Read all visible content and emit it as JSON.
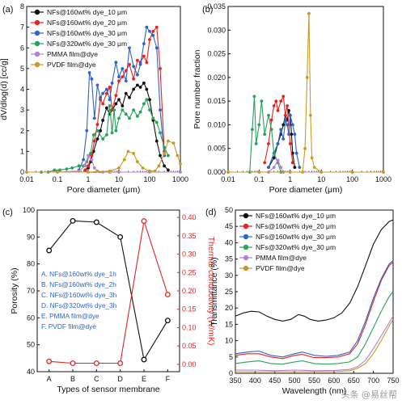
{
  "watermark": "头条 @易丝帮",
  "chart_data": [
    {
      "panel_label": "(a)",
      "type": "line",
      "xlabel": "Pore diameter (μm)",
      "ylabel": "dV/dlog(d) [cc/g]",
      "xscale": "log",
      "xlim": [
        0.01,
        1000
      ],
      "ylim": [
        0,
        8
      ],
      "xticks": [
        "0.01",
        "0.1",
        "1",
        "10",
        "100",
        "1000"
      ],
      "yticks": [
        "0",
        "1",
        "2",
        "3",
        "4",
        "5",
        "6",
        "7",
        "8"
      ],
      "legend_position": "top-left",
      "series": [
        {
          "name": "NFs@160wt% dye_10 μm",
          "color": "#111111",
          "x": [
            0.8,
            1.0,
            1.2,
            1.5,
            2,
            2.5,
            3,
            4,
            5,
            6,
            8,
            10,
            13,
            17,
            22,
            30,
            40,
            50,
            65,
            80,
            100,
            130,
            170,
            220,
            300,
            400
          ],
          "y": [
            0.1,
            0.2,
            0.5,
            1.0,
            1.6,
            2.0,
            2.5,
            3.1,
            2.8,
            3.0,
            3.3,
            3.5,
            3.2,
            3.8,
            3.6,
            4.0,
            4.2,
            4.1,
            4.3,
            4.0,
            3.5,
            2.5,
            1.5,
            0.8,
            0.3,
            0.1
          ]
        },
        {
          "name": "NFs@160wt% dye_20 μm",
          "color": "#e8231f",
          "x": [
            0.8,
            1.0,
            1.3,
            1.6,
            2,
            2.5,
            3,
            4,
            5,
            6,
            8,
            10,
            13,
            17,
            22,
            30,
            40,
            50,
            65,
            80,
            100,
            130,
            170,
            220,
            300
          ],
          "y": [
            0.1,
            0.3,
            0.8,
            1.5,
            2.3,
            3.5,
            3.3,
            3.8,
            4.1,
            3.0,
            3.7,
            4.4,
            4.6,
            4.9,
            5.2,
            4.5,
            5.4,
            5.3,
            5.6,
            5.3,
            6.4,
            6.8,
            7.0,
            5.0,
            1.0
          ]
        },
        {
          "name": "NFs@160wt% dye_30 μm",
          "color": "#2f63c7",
          "x": [
            0.5,
            0.7,
            0.9,
            1.1,
            1.3,
            1.6,
            2,
            2.5,
            3,
            4,
            5,
            6,
            8,
            10,
            13,
            17,
            22,
            30,
            40,
            50,
            65,
            80,
            100,
            130,
            170,
            220,
            300
          ],
          "y": [
            0.1,
            0.6,
            2.0,
            4.8,
            4.5,
            2.6,
            4.2,
            3.6,
            3.8,
            4.0,
            3.5,
            4.3,
            5.3,
            4.6,
            5.0,
            4.4,
            6.0,
            5.1,
            4.7,
            5.2,
            6.2,
            7.0,
            6.8,
            6.6,
            6.0,
            3.0,
            0.8
          ]
        },
        {
          "name": "NFs@320wt% dye_30 μm",
          "color": "#27a25b",
          "x": [
            0.03,
            0.05,
            0.08,
            0.12,
            0.2,
            0.3,
            0.5,
            0.7,
            0.9,
            1.2,
            1.5,
            2,
            3,
            4,
            5,
            6,
            7,
            8,
            10,
            13,
            17,
            22,
            30,
            40,
            50,
            65,
            80,
            100,
            130,
            170,
            220,
            300,
            400
          ],
          "y": [
            0.0,
            0.0,
            0.1,
            0.1,
            0.15,
            0.2,
            0.3,
            0.3,
            0.5,
            0.9,
            1.8,
            2.0,
            1.6,
            1.8,
            3.2,
            1.9,
            3.0,
            2.0,
            2.6,
            3.0,
            2.8,
            2.6,
            3.0,
            2.7,
            2.9,
            3.3,
            3.5,
            3.0,
            2.6,
            2.4,
            1.9,
            1.2,
            0.8
          ]
        },
        {
          "name": "PMMA film@dye",
          "color": "#b67fd1",
          "x": [
            0.01,
            0.1,
            0.5,
            0.8,
            1.0,
            1.3,
            1.6,
            2,
            3,
            5,
            10,
            100,
            1000
          ],
          "y": [
            0.0,
            0.0,
            0.05,
            0.3,
            0.8,
            0.6,
            0.2,
            0.05,
            0.0,
            0.0,
            0.0,
            0.0,
            0.0
          ]
        },
        {
          "name": "PVDF film@dye",
          "color": "#c99a27",
          "x": [
            0.01,
            0.1,
            1,
            5,
            10,
            15,
            20,
            30,
            40,
            60,
            100,
            150,
            200,
            300,
            400,
            600,
            800,
            1000
          ],
          "y": [
            0.0,
            0.0,
            0.0,
            0.05,
            0.2,
            0.6,
            1.0,
            0.9,
            0.5,
            0.2,
            0.05,
            0.05,
            0.3,
            0.9,
            1.5,
            1.4,
            0.8,
            0.4
          ]
        }
      ]
    },
    {
      "panel_label": "(b)",
      "type": "line",
      "xlabel": "Pore diameter (μm)",
      "ylabel": "Pore number fraction",
      "xscale": "log",
      "xlim": [
        0.01,
        1000
      ],
      "ylim": [
        0,
        0.035
      ],
      "xticks": [
        "0.01",
        "0.1",
        "1",
        "10",
        "100",
        "1000"
      ],
      "yticks": [
        "0.000",
        "0.005",
        "0.010",
        "0.015",
        "0.020",
        "0.025",
        "0.030",
        "0.035"
      ],
      "series": [
        {
          "name": "NFs@160wt% dye_10 μm",
          "color": "#111111",
          "x": [
            0.2,
            0.3,
            0.4,
            0.5,
            0.6,
            0.7,
            0.8,
            0.9,
            1.0,
            1.1,
            1.2,
            1.4
          ],
          "y": [
            0.001,
            0.003,
            0.006,
            0.008,
            0.01,
            0.012,
            0.011,
            0.013,
            0.012,
            0.008,
            0.004,
            0.001
          ]
        },
        {
          "name": "NFs@160wt% dye_20 μm",
          "color": "#e8231f",
          "x": [
            0.15,
            0.2,
            0.25,
            0.3,
            0.35,
            0.4,
            0.5,
            0.6,
            0.7,
            0.8,
            0.9,
            1.0,
            1.2
          ],
          "y": [
            0.002,
            0.006,
            0.011,
            0.014,
            0.015,
            0.013,
            0.015,
            0.016,
            0.012,
            0.014,
            0.01,
            0.006,
            0.002
          ]
        },
        {
          "name": "NFs@160wt% dye_30 μm",
          "color": "#2f63c7",
          "x": [
            0.2,
            0.3,
            0.4,
            0.5,
            0.6,
            0.7,
            0.8,
            0.9,
            1.0,
            1.2,
            1.4,
            1.6,
            2.0
          ],
          "y": [
            0.001,
            0.004,
            0.006,
            0.009,
            0.007,
            0.011,
            0.01,
            0.008,
            0.012,
            0.01,
            0.008,
            0.004,
            0.001
          ]
        },
        {
          "name": "NFs@320wt% dye_30 μm",
          "color": "#27a25b",
          "x": [
            0.05,
            0.06,
            0.07,
            0.08,
            0.1,
            0.12,
            0.15,
            0.2,
            0.25,
            0.3,
            0.4,
            0.5
          ],
          "y": [
            0.0,
            0.009,
            0.016,
            0.006,
            0.01,
            0.015,
            0.008,
            0.012,
            0.009,
            0.004,
            0.002,
            0.0
          ]
        },
        {
          "name": "PMMA film@dye",
          "color": "#b67fd1",
          "x": [
            0.01,
            0.1,
            0.2,
            0.3,
            0.4,
            0.5,
            0.6,
            1,
            10,
            100,
            1000
          ],
          "y": [
            0.0,
            0.0,
            0.0,
            0.001,
            0.0025,
            0.001,
            0.0,
            0.0,
            0.0,
            0.0,
            0.0
          ]
        },
        {
          "name": "PVDF film@dye",
          "color": "#c99a27",
          "x": [
            0.01,
            0.1,
            1,
            2.5,
            3,
            3.5,
            4,
            4.5,
            5,
            6,
            10,
            100,
            1000
          ],
          "y": [
            0.0,
            0.0,
            0.0,
            0.0,
            0.005,
            0.02,
            0.0335,
            0.012,
            0.003,
            0.001,
            0.0,
            0.0,
            0.0
          ]
        }
      ]
    },
    {
      "panel_label": "(c)",
      "type": "line",
      "xlabel": "Types of sensor membrane",
      "ylabel": "Porosity (%)",
      "ylabel_right": "Thermal conductivity (W/mK)",
      "categories": [
        "A",
        "B",
        "C",
        "D",
        "E",
        "F"
      ],
      "ylim": [
        40,
        100
      ],
      "ylim_right": [
        -0.02,
        0.42
      ],
      "yticks": [
        "40",
        "50",
        "60",
        "70",
        "80",
        "90",
        "100"
      ],
      "yticks_right": [
        "0.00",
        "0.05",
        "0.10",
        "0.15",
        "0.20",
        "0.25",
        "0.30",
        "0.35",
        "0.40"
      ],
      "annotations": [
        "A.  NFs@160wt% dye_1h",
        "B.  NFs@160wt% dye_2h",
        "C.  NFs@160wt% dye_3h",
        "D.  NFs@320wt% dye_3h",
        "E.  PMMA film@dye",
        "F.  PVDF film@dye"
      ],
      "series": [
        {
          "name": "Porosity",
          "color": "#111111",
          "axis": "left",
          "values": [
            85,
            96,
            95.5,
            90,
            44.5,
            59
          ]
        },
        {
          "name": "Thermal conductivity",
          "color": "#e8231f",
          "axis": "right",
          "values": [
            0.008,
            0.003,
            0.003,
            0.003,
            0.39,
            0.19
          ]
        }
      ]
    },
    {
      "panel_label": "(d)",
      "type": "line",
      "xlabel": "Wavelength (nm)",
      "ylabel": "Transmittance (%)",
      "xlim": [
        350,
        750
      ],
      "ylim": [
        0,
        50
      ],
      "xticks": [
        "350",
        "400",
        "450",
        "500",
        "550",
        "600",
        "650",
        "700",
        "750"
      ],
      "yticks": [
        "0",
        "5",
        "10",
        "15",
        "20",
        "25",
        "30",
        "35",
        "40",
        "45",
        "50"
      ],
      "legend_position": "top-left",
      "series": [
        {
          "name": "NFs@160wt% dye_10 μm",
          "color": "#111111",
          "x": [
            350,
            370,
            390,
            410,
            430,
            450,
            470,
            490,
            510,
            525,
            540,
            560,
            580,
            600,
            620,
            640,
            660,
            680,
            700,
            720,
            740,
            750
          ],
          "y": [
            17.5,
            18.5,
            19.0,
            18.8,
            17.5,
            16.5,
            16.0,
            16.5,
            18.0,
            17.5,
            16.5,
            16.0,
            16.3,
            17.0,
            18.5,
            21.5,
            26.5,
            33.0,
            39.5,
            44.0,
            46.5,
            47.0
          ]
        },
        {
          "name": "NFs@160wt% dye_20 μm",
          "color": "#e8231f",
          "x": [
            350,
            380,
            410,
            440,
            470,
            500,
            520,
            550,
            580,
            610,
            640,
            660,
            680,
            700,
            720,
            740,
            750
          ],
          "y": [
            5.5,
            6.0,
            6.0,
            5.0,
            4.5,
            5.5,
            5.8,
            4.8,
            4.8,
            5.0,
            6.0,
            9.0,
            15.0,
            22.0,
            28.5,
            33.0,
            34.0
          ]
        },
        {
          "name": "NFs@160wt% dye_30 μm",
          "color": "#2f63c7",
          "x": [
            350,
            380,
            410,
            440,
            470,
            500,
            520,
            550,
            580,
            610,
            640,
            660,
            680,
            700,
            720,
            740,
            750
          ],
          "y": [
            6.0,
            6.5,
            6.8,
            5.5,
            5.0,
            6.0,
            6.5,
            5.5,
            5.2,
            5.5,
            6.5,
            10.0,
            16.0,
            23.0,
            29.0,
            33.5,
            34.5
          ]
        },
        {
          "name": "NFs@320wt% dye_30 μm",
          "color": "#27a25b",
          "x": [
            350,
            380,
            410,
            440,
            470,
            500,
            520,
            550,
            580,
            610,
            640,
            660,
            680,
            700,
            720,
            740,
            750
          ],
          "y": [
            3.0,
            3.5,
            3.8,
            3.0,
            2.8,
            3.5,
            3.8,
            3.0,
            2.8,
            3.0,
            3.5,
            5.0,
            9.0,
            14.0,
            19.0,
            23.5,
            25.0
          ]
        },
        {
          "name": "PMMA film@dye",
          "color": "#b67fd1",
          "x": [
            350,
            400,
            450,
            500,
            550,
            600,
            640,
            660,
            680,
            700,
            720,
            740,
            750
          ],
          "y": [
            1.0,
            1.0,
            0.8,
            1.0,
            0.8,
            0.9,
            1.2,
            2.0,
            4.0,
            7.5,
            11.5,
            15.5,
            17.5
          ]
        },
        {
          "name": "PVDF film@dye",
          "color": "#c99a27",
          "x": [
            350,
            400,
            450,
            500,
            550,
            600,
            640,
            660,
            680,
            700,
            720,
            740,
            750
          ],
          "y": [
            0.5,
            0.5,
            0.5,
            0.5,
            0.5,
            0.5,
            0.8,
            1.5,
            3.0,
            6.0,
            10.0,
            14.5,
            16.5
          ]
        }
      ]
    }
  ]
}
